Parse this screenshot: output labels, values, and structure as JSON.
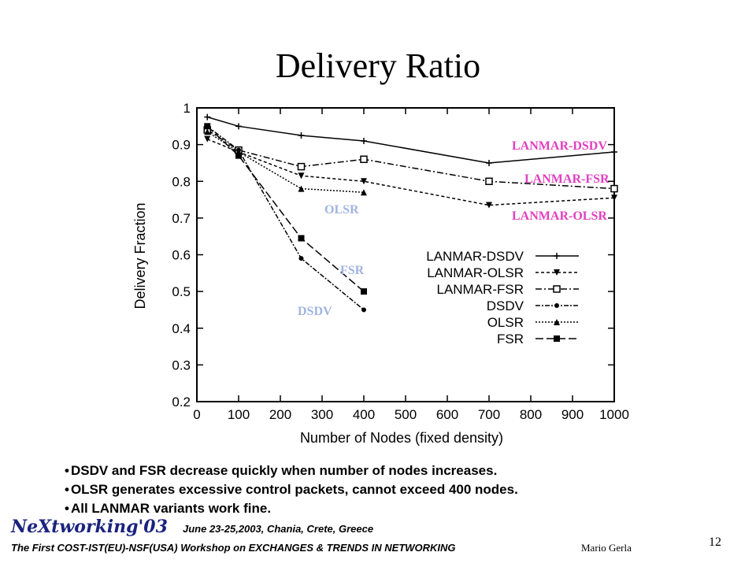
{
  "slide": {
    "title": "Delivery Ratio",
    "bullets": [
      "DSDV and FSR decrease quickly when number of nodes increases.",
      "OLSR generates excessive control packets, cannot exceed 400 nodes.",
      "All LANMAR variants work fine."
    ],
    "footer_logo": "NeXtworking'03",
    "footer_date": "June 23-25,2003, Chania, Crete, Greece",
    "footer_workshop": "The First COST-IST(EU)-NSF(USA) Workshop on EXCHANGES & TRENDS IN NETWORKING",
    "author": "Mario Gerla",
    "page_number": "12",
    "overlay_labels": [
      {
        "text": "LANMAR-DSDV",
        "color": "#e040c0"
      },
      {
        "text": "LANMAR-FSR",
        "color": "#e040c0"
      },
      {
        "text": "LANMAR-OLSR",
        "color": "#e040c0"
      },
      {
        "text": "OLSR",
        "color": "#a0b4e0"
      },
      {
        "text": "FSR",
        "color": "#a0b4e0"
      },
      {
        "text": "DSDV",
        "color": "#a0b4e0"
      }
    ]
  },
  "chart_data": {
    "type": "line",
    "title": "",
    "xlabel": "Number of Nodes (fixed density)",
    "ylabel": "Delivery Fraction",
    "xlim": [
      0,
      1000
    ],
    "ylim": [
      0.2,
      1.0
    ],
    "xticks": [
      0,
      100,
      200,
      300,
      400,
      500,
      600,
      700,
      800,
      900,
      1000
    ],
    "yticks": [
      0.2,
      0.3,
      0.4,
      0.5,
      0.6,
      0.7,
      0.8,
      0.9,
      1.0
    ],
    "legend_position": "lower-right",
    "series": [
      {
        "name": "LANMAR-DSDV",
        "marker": "plus",
        "dash": "",
        "x": [
          25,
          100,
          250,
          400,
          700,
          1000
        ],
        "y": [
          0.975,
          0.95,
          0.925,
          0.91,
          0.85,
          0.88
        ]
      },
      {
        "name": "LANMAR-OLSR",
        "marker": "triangle-down",
        "dash": "4,3",
        "x": [
          25,
          100,
          250,
          400,
          700,
          1000
        ],
        "y": [
          0.915,
          0.88,
          0.815,
          0.8,
          0.735,
          0.755
        ]
      },
      {
        "name": "LANMAR-FSR",
        "marker": "square-open",
        "dash": "8,3,2,3",
        "x": [
          25,
          100,
          250,
          400,
          700,
          1000
        ],
        "y": [
          0.94,
          0.885,
          0.84,
          0.86,
          0.8,
          0.78
        ]
      },
      {
        "name": "DSDV",
        "marker": "dot",
        "dash": "6,2,2,2",
        "x": [
          25,
          100,
          250,
          400
        ],
        "y": [
          0.95,
          0.885,
          0.59,
          0.45
        ]
      },
      {
        "name": "OLSR",
        "marker": "triangle",
        "dash": "2,2",
        "x": [
          25,
          100,
          250,
          400
        ],
        "y": [
          0.935,
          0.88,
          0.78,
          0.77
        ]
      },
      {
        "name": "FSR",
        "marker": "square",
        "dash": "10,4",
        "x": [
          25,
          100,
          250,
          400
        ],
        "y": [
          0.95,
          0.87,
          0.645,
          0.5
        ]
      }
    ]
  }
}
